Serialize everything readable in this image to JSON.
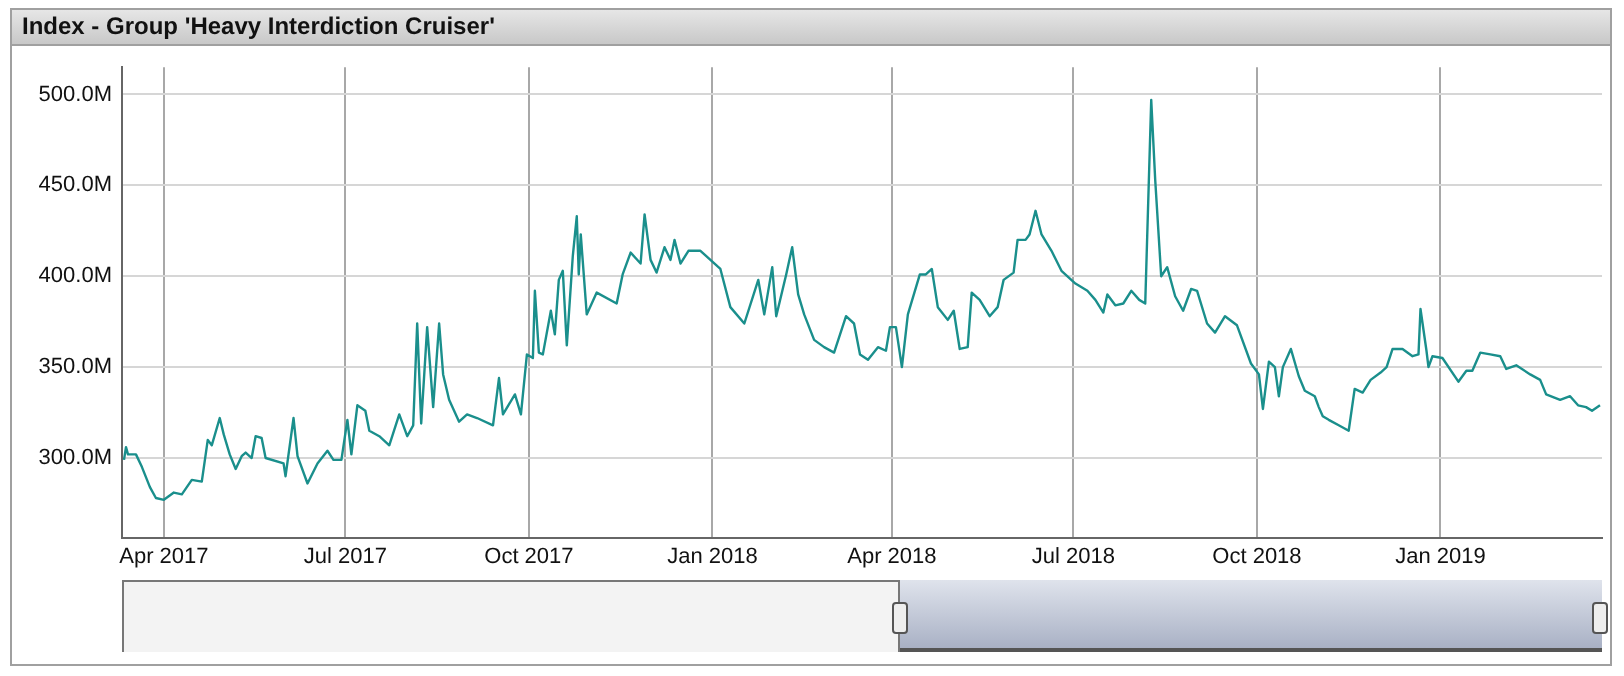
{
  "chart_data": {
    "type": "line",
    "title": "Index - Group 'Heavy Interdiction Cruiser'",
    "x": [
      "2017-03-12",
      "2017-03-13",
      "2017-03-14",
      "2017-03-18",
      "2017-03-21",
      "2017-03-25",
      "2017-03-28",
      "2017-04-01",
      "2017-04-06",
      "2017-04-10",
      "2017-04-15",
      "2017-04-20",
      "2017-04-23",
      "2017-04-25",
      "2017-04-29",
      "2017-05-01",
      "2017-05-04",
      "2017-05-07",
      "2017-05-10",
      "2017-05-12",
      "2017-05-15",
      "2017-05-17",
      "2017-05-20",
      "2017-05-22",
      "2017-05-31",
      "2017-06-01",
      "2017-06-05",
      "2017-06-07",
      "2017-06-12",
      "2017-06-17",
      "2017-06-22",
      "2017-06-25",
      "2017-06-29",
      "2017-07-02",
      "2017-07-04",
      "2017-07-07",
      "2017-07-11",
      "2017-07-13",
      "2017-07-18",
      "2017-07-23",
      "2017-07-28",
      "2017-08-01",
      "2017-08-04",
      "2017-08-06",
      "2017-08-08",
      "2017-08-11",
      "2017-08-14",
      "2017-08-17",
      "2017-08-19",
      "2017-08-22",
      "2017-08-27",
      "2017-08-31",
      "2017-09-05",
      "2017-09-13",
      "2017-09-16",
      "2017-09-18",
      "2017-09-24",
      "2017-09-27",
      "2017-09-30",
      "2017-10-03",
      "2017-10-04",
      "2017-10-06",
      "2017-10-08",
      "2017-10-12",
      "2017-10-14",
      "2017-10-16",
      "2017-10-18",
      "2017-10-20",
      "2017-10-23",
      "2017-10-25",
      "2017-10-26",
      "2017-10-27",
      "2017-10-30",
      "2017-11-04",
      "2017-11-14",
      "2017-11-17",
      "2017-11-21",
      "2017-11-26",
      "2017-11-28",
      "2017-12-01",
      "2017-12-04",
      "2017-12-08",
      "2017-12-11",
      "2017-12-13",
      "2017-12-16",
      "2017-12-20",
      "2017-12-26",
      "2017-12-31",
      "2018-01-05",
      "2018-01-10",
      "2018-01-17",
      "2018-01-24",
      "2018-01-27",
      "2018-01-31",
      "2018-02-02",
      "2018-02-07",
      "2018-02-10",
      "2018-02-13",
      "2018-02-16",
      "2018-02-21",
      "2018-02-26",
      "2018-03-03",
      "2018-03-09",
      "2018-03-13",
      "2018-03-16",
      "2018-03-20",
      "2018-03-25",
      "2018-03-29",
      "2018-03-31",
      "2018-04-03",
      "2018-04-06",
      "2018-04-09",
      "2018-04-15",
      "2018-04-18",
      "2018-04-21",
      "2018-04-24",
      "2018-04-29",
      "2018-05-02",
      "2018-05-05",
      "2018-05-09",
      "2018-05-11",
      "2018-05-15",
      "2018-05-20",
      "2018-05-24",
      "2018-05-27",
      "2018-06-01",
      "2018-06-03",
      "2018-06-07",
      "2018-06-09",
      "2018-06-12",
      "2018-06-15",
      "2018-06-20",
      "2018-06-25",
      "2018-07-02",
      "2018-07-08",
      "2018-07-12",
      "2018-07-16",
      "2018-07-18",
      "2018-07-22",
      "2018-07-26",
      "2018-07-30",
      "2018-08-03",
      "2018-08-06",
      "2018-08-09",
      "2018-08-11",
      "2018-08-14",
      "2018-08-17",
      "2018-08-21",
      "2018-08-25",
      "2018-08-29",
      "2018-09-01",
      "2018-09-06",
      "2018-09-10",
      "2018-09-15",
      "2018-09-21",
      "2018-09-28",
      "2018-10-02",
      "2018-10-04",
      "2018-10-07",
      "2018-10-10",
      "2018-10-12",
      "2018-10-14",
      "2018-10-18",
      "2018-10-22",
      "2018-10-25",
      "2018-10-30",
      "2018-11-01",
      "2018-11-03",
      "2018-11-06",
      "2018-11-11",
      "2018-11-16",
      "2018-11-19",
      "2018-11-23",
      "2018-11-27",
      "2018-12-02",
      "2018-12-05",
      "2018-12-08",
      "2018-12-13",
      "2018-12-18",
      "2018-12-21",
      "2018-12-22",
      "2018-12-25",
      "2018-12-26",
      "2018-12-28",
      "2019-01-02",
      "2019-01-10",
      "2019-01-14",
      "2019-01-17",
      "2019-01-21",
      "2019-01-26",
      "2019-01-31",
      "2019-02-03",
      "2019-02-08",
      "2019-02-15",
      "2019-02-20",
      "2019-02-23",
      "2019-03-02",
      "2019-03-07",
      "2019-03-11",
      "2019-03-15",
      "2019-03-18",
      "2019-03-22"
    ],
    "series": [
      {
        "color": "#1a8f8c",
        "values": [
          299,
          306,
          302,
          302,
          295,
          284,
          278,
          277,
          281,
          280,
          288,
          287,
          310,
          307,
          322,
          313,
          302,
          294,
          301,
          303,
          300,
          312,
          311,
          300,
          297,
          290,
          322,
          301,
          286,
          297,
          304,
          299,
          299,
          321,
          302,
          329,
          326,
          315,
          312,
          307,
          324,
          312,
          318,
          374,
          319,
          372,
          328,
          374,
          346,
          332,
          320,
          324,
          322,
          318,
          344,
          324,
          335,
          324,
          357,
          355,
          392,
          358,
          357,
          381,
          368,
          398,
          403,
          362,
          411,
          433,
          401,
          423,
          379,
          391,
          385,
          401,
          413,
          407,
          434,
          409,
          402,
          416,
          409,
          420,
          407,
          414,
          414,
          409,
          404,
          383,
          374,
          398,
          379,
          405,
          378,
          401,
          416,
          390,
          379,
          365,
          361,
          358,
          378,
          374,
          357,
          354,
          361,
          359,
          372,
          372,
          350,
          379,
          401,
          401,
          404,
          383,
          376,
          381,
          360,
          361,
          391,
          387,
          378,
          383,
          398,
          402,
          420,
          420,
          423,
          436,
          423,
          414,
          403,
          396,
          392,
          387,
          380,
          390,
          384,
          385,
          392,
          387,
          385,
          497,
          453,
          400,
          405,
          389,
          381,
          393,
          392,
          374,
          369,
          378,
          373,
          352,
          346,
          327,
          353,
          350,
          334,
          350,
          360,
          345,
          337,
          334,
          328,
          323,
          321,
          318,
          315,
          338,
          336,
          343,
          347,
          350,
          360,
          360,
          356,
          357,
          382,
          359,
          350,
          356,
          355,
          342,
          348,
          348,
          358,
          357,
          356,
          349,
          351,
          346,
          343,
          335,
          332,
          334,
          329,
          328,
          326,
          329
        ]
      }
    ],
    "xlim": [
      "2017-03-11",
      "2019-03-23"
    ],
    "xticks": [
      {
        "value": "2017-04-01",
        "label": "Apr 2017"
      },
      {
        "value": "2017-07-01",
        "label": "Jul 2017"
      },
      {
        "value": "2017-10-01",
        "label": "Oct 2017"
      },
      {
        "value": "2018-01-01",
        "label": "Jan 2018"
      },
      {
        "value": "2018-04-01",
        "label": "Apr 2018"
      },
      {
        "value": "2018-07-01",
        "label": "Jul 2018"
      },
      {
        "value": "2018-10-01",
        "label": "Oct 2018"
      },
      {
        "value": "2019-01-01",
        "label": "Jan 2019"
      }
    ],
    "ylim": [
      256,
      515
    ],
    "yticks": [
      {
        "value": 300,
        "label": "300.0M"
      },
      {
        "value": 350,
        "label": "350.0M"
      },
      {
        "value": 400,
        "label": "400.0M"
      },
      {
        "value": 450,
        "label": "450.0M"
      },
      {
        "value": 500,
        "label": "500.0M"
      }
    ],
    "grid": true,
    "legend": false,
    "marker": "none",
    "line_style": "solid"
  }
}
